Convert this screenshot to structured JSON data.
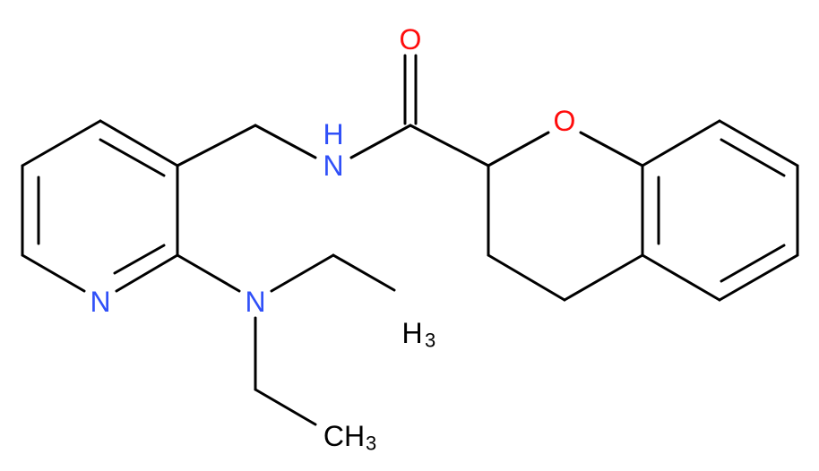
{
  "atoms": [
    {
      "label": "O"
    },
    {
      "label": "H"
    },
    {
      "label": "N"
    },
    {
      "label": "O"
    },
    {
      "label": "N"
    },
    {
      "label": "N"
    },
    {
      "label": "H",
      "sub": "3"
    },
    {
      "label": "CH",
      "sub": "3"
    }
  ]
}
